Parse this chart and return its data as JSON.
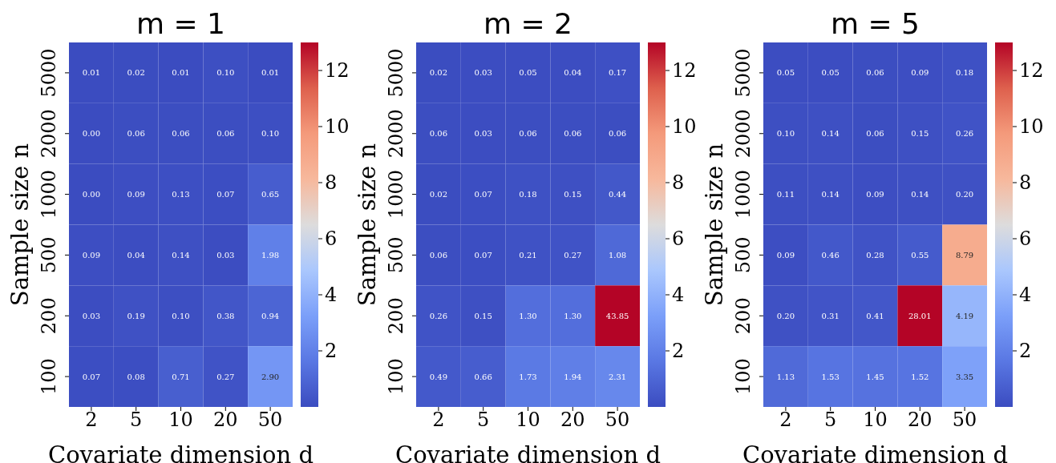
{
  "chart_data": [
    {
      "type": "heatmap",
      "title": "m = 1",
      "xlabel": "Covariate dimension d",
      "ylabel": "Sample size n",
      "categories": [
        "2",
        "5",
        "10",
        "20",
        "50"
      ],
      "y_categories": [
        "5000",
        "2000",
        "1000",
        "500",
        "200",
        "100"
      ],
      "cells": [
        [
          0.01,
          0.02,
          0.01,
          0.1,
          0.01
        ],
        [
          0.0,
          0.06,
          0.06,
          0.06,
          0.1
        ],
        [
          0.0,
          0.09,
          0.13,
          0.07,
          0.65
        ],
        [
          0.09,
          0.04,
          0.14,
          0.03,
          1.98
        ],
        [
          0.03,
          0.19,
          0.1,
          0.38,
          0.94
        ],
        [
          0.07,
          0.08,
          0.71,
          0.27,
          2.9
        ]
      ],
      "cell_labels": [
        [
          "0.01",
          "0.02",
          "0.01",
          "0.10",
          "0.01"
        ],
        [
          "0.00",
          "0.06",
          "0.06",
          "0.06",
          "0.10"
        ],
        [
          "0.00",
          "0.09",
          "0.13",
          "0.07",
          "0.65"
        ],
        [
          "0.09",
          "0.04",
          "0.14",
          "0.03",
          "1.98"
        ],
        [
          "0.03",
          "0.19",
          "0.10",
          "0.38",
          "0.94"
        ],
        [
          "0.07",
          "0.08",
          "0.71",
          "0.27",
          "2.90"
        ]
      ],
      "clim": [
        0,
        13
      ],
      "cticks": [
        2,
        4,
        6,
        8,
        10,
        12
      ],
      "data_labels": true
    },
    {
      "type": "heatmap",
      "title": "m = 2",
      "xlabel": "Covariate dimension d",
      "ylabel": "Sample size n",
      "categories": [
        "2",
        "5",
        "10",
        "20",
        "50"
      ],
      "y_categories": [
        "5000",
        "2000",
        "1000",
        "500",
        "200",
        "100"
      ],
      "cells": [
        [
          0.02,
          0.03,
          0.05,
          0.04,
          0.17
        ],
        [
          0.06,
          0.03,
          0.06,
          0.06,
          0.06
        ],
        [
          0.02,
          0.07,
          0.18,
          0.15,
          0.44
        ],
        [
          0.06,
          0.07,
          0.21,
          0.27,
          1.08
        ],
        [
          0.26,
          0.15,
          1.3,
          1.3,
          43.85
        ],
        [
          0.49,
          0.66,
          1.73,
          1.94,
          2.31
        ]
      ],
      "cell_labels": [
        [
          "0.02",
          "0.03",
          "0.05",
          "0.04",
          "0.17"
        ],
        [
          "0.06",
          "0.03",
          "0.06",
          "0.06",
          "0.06"
        ],
        [
          "0.02",
          "0.07",
          "0.18",
          "0.15",
          "0.44"
        ],
        [
          "0.06",
          "0.07",
          "0.21",
          "0.27",
          "1.08"
        ],
        [
          "0.26",
          "0.15",
          "1.30",
          "1.30",
          "43.85"
        ],
        [
          "0.49",
          "0.66",
          "1.73",
          "1.94",
          "2.31"
        ]
      ],
      "clim": [
        0,
        13
      ],
      "cticks": [
        2,
        4,
        6,
        8,
        10,
        12
      ],
      "data_labels": true
    },
    {
      "type": "heatmap",
      "title": "m = 5",
      "xlabel": "Covariate dimension d",
      "ylabel": "Sample size n",
      "categories": [
        "2",
        "5",
        "10",
        "20",
        "50"
      ],
      "y_categories": [
        "5000",
        "2000",
        "1000",
        "500",
        "200",
        "100"
      ],
      "cells": [
        [
          0.05,
          0.05,
          0.06,
          0.09,
          0.18
        ],
        [
          0.1,
          0.14,
          0.06,
          0.15,
          0.26
        ],
        [
          0.11,
          0.14,
          0.09,
          0.14,
          0.2
        ],
        [
          0.09,
          0.46,
          0.28,
          0.55,
          8.79
        ],
        [
          0.2,
          0.31,
          0.41,
          28.01,
          4.19
        ],
        [
          1.13,
          1.53,
          1.45,
          1.52,
          3.35
        ]
      ],
      "cell_labels": [
        [
          "0.05",
          "0.05",
          "0.06",
          "0.09",
          "0.18"
        ],
        [
          "0.10",
          "0.14",
          "0.06",
          "0.15",
          "0.26"
        ],
        [
          "0.11",
          "0.14",
          "0.09",
          "0.14",
          "0.20"
        ],
        [
          "0.09",
          "0.46",
          "0.28",
          "0.55",
          "8.79"
        ],
        [
          "0.20",
          "0.31",
          "0.41",
          "28.01",
          "4.19"
        ],
        [
          "1.13",
          "1.53",
          "1.45",
          "1.52",
          "3.35"
        ]
      ],
      "clim": [
        0,
        13
      ],
      "cticks": [
        2,
        4,
        6,
        8,
        10,
        12
      ],
      "data_labels": true
    }
  ]
}
